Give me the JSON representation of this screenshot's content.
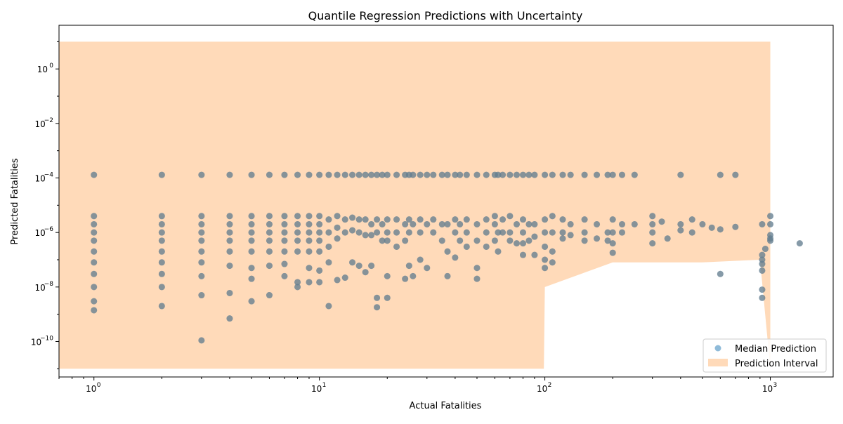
{
  "chart_data": {
    "type": "scatter",
    "title": "Quantile Regression Predictions with Uncertainty",
    "xlabel": "Actual Fatalities",
    "ylabel": "Predicted Fatalities",
    "xscale": "log",
    "yscale": "log",
    "xlim": [
      0.7,
      1900
    ],
    "ylim": [
      5e-12,
      40
    ],
    "x_ticks": [
      {
        "value": 1,
        "base": "10",
        "exp": "0"
      },
      {
        "value": 10,
        "base": "10",
        "exp": "1"
      },
      {
        "value": 100,
        "base": "10",
        "exp": "2"
      },
      {
        "value": 1000,
        "base": "10",
        "exp": "3"
      }
    ],
    "y_ticks": [
      {
        "value": 1e-10,
        "base": "10",
        "exp": "−10"
      },
      {
        "value": 1e-08,
        "base": "10",
        "exp": "−8"
      },
      {
        "value": 1e-06,
        "base": "10",
        "exp": "−6"
      },
      {
        "value": 0.0001,
        "base": "10",
        "exp": "−4"
      },
      {
        "value": 0.01,
        "base": "10",
        "exp": "−2"
      },
      {
        "value": 1,
        "base": "10",
        "exp": "0"
      }
    ],
    "grid": false,
    "legend_position": "lower-right",
    "legend": [
      {
        "label": "Median Prediction",
        "kind": "marker",
        "color": "#1f77b4"
      },
      {
        "label": "Prediction Interval",
        "kind": "band",
        "color": "#ffdab9"
      }
    ],
    "colors": {
      "median": "#1f77b4",
      "interval": "#ffdab9",
      "overlay": "#808080"
    },
    "series": [
      {
        "name": "Prediction Interval",
        "kind": "band",
        "x": [
          1,
          2,
          3,
          4,
          5,
          6,
          7,
          8,
          9,
          10,
          12,
          15,
          20,
          30,
          50,
          99,
          100,
          200,
          300,
          500,
          900,
          1000
        ],
        "lower": [
          1e-11,
          1e-11,
          1e-11,
          1e-11,
          1e-11,
          1e-11,
          1e-11,
          1e-11,
          1e-11,
          1e-11,
          1e-11,
          1e-11,
          1e-11,
          1e-11,
          1e-11,
          1e-11,
          1e-08,
          8e-08,
          8e-08,
          8e-08,
          1e-07,
          1e-11
        ],
        "upper": [
          10,
          10,
          10,
          10,
          10,
          10,
          10,
          10,
          10,
          10,
          10,
          10,
          10,
          10,
          10,
          10,
          10,
          10,
          10,
          10,
          10,
          10
        ]
      },
      {
        "name": "Median Prediction",
        "kind": "points",
        "points": [
          [
            1,
            0.00013
          ],
          [
            1,
            4e-06
          ],
          [
            1,
            2e-06
          ],
          [
            1,
            1e-06
          ],
          [
            1,
            5e-07
          ],
          [
            1,
            2e-07
          ],
          [
            1,
            8e-08
          ],
          [
            1,
            3e-08
          ],
          [
            1,
            1e-08
          ],
          [
            1,
            3e-09
          ],
          [
            1,
            1.4e-09
          ],
          [
            2,
            0.00013
          ],
          [
            2,
            4e-06
          ],
          [
            2,
            2e-06
          ],
          [
            2,
            1e-06
          ],
          [
            2,
            5e-07
          ],
          [
            2,
            2e-07
          ],
          [
            2,
            8e-08
          ],
          [
            2,
            3e-08
          ],
          [
            2,
            1e-08
          ],
          [
            2,
            2e-09
          ],
          [
            3,
            0.00013
          ],
          [
            3,
            4e-06
          ],
          [
            3,
            2e-06
          ],
          [
            3,
            1e-06
          ],
          [
            3,
            5e-07
          ],
          [
            3,
            2e-07
          ],
          [
            3,
            8e-08
          ],
          [
            3,
            2.5e-08
          ],
          [
            3,
            5e-09
          ],
          [
            3,
            1.1e-10
          ],
          [
            4,
            0.00013
          ],
          [
            4,
            4e-06
          ],
          [
            4,
            2e-06
          ],
          [
            4,
            1e-06
          ],
          [
            4,
            5e-07
          ],
          [
            4,
            2e-07
          ],
          [
            4,
            6e-08
          ],
          [
            4,
            6e-09
          ],
          [
            4,
            7e-10
          ],
          [
            5,
            0.00013
          ],
          [
            5,
            4e-06
          ],
          [
            5,
            2e-06
          ],
          [
            5,
            1e-06
          ],
          [
            5,
            5e-07
          ],
          [
            5,
            2e-07
          ],
          [
            5,
            5e-08
          ],
          [
            5,
            2e-08
          ],
          [
            5,
            3e-09
          ],
          [
            6,
            0.00013
          ],
          [
            6,
            4e-06
          ],
          [
            6,
            2e-06
          ],
          [
            6,
            1e-06
          ],
          [
            6,
            5e-07
          ],
          [
            6,
            2e-07
          ],
          [
            6,
            6e-08
          ],
          [
            6,
            5e-09
          ],
          [
            7,
            0.00013
          ],
          [
            7,
            4e-06
          ],
          [
            7,
            2e-06
          ],
          [
            7,
            1e-06
          ],
          [
            7,
            5e-07
          ],
          [
            7,
            2e-07
          ],
          [
            7,
            7e-08
          ],
          [
            7,
            2.5e-08
          ],
          [
            8,
            0.00013
          ],
          [
            8,
            4e-06
          ],
          [
            8,
            2e-06
          ],
          [
            8,
            1e-06
          ],
          [
            8,
            5e-07
          ],
          [
            8,
            2e-07
          ],
          [
            8,
            1.5e-08
          ],
          [
            8,
            1e-08
          ],
          [
            9,
            0.00013
          ],
          [
            9,
            4e-06
          ],
          [
            9,
            2e-06
          ],
          [
            9,
            1e-06
          ],
          [
            9,
            5e-07
          ],
          [
            9,
            2e-07
          ],
          [
            9,
            5e-08
          ],
          [
            9,
            1.5e-08
          ],
          [
            10,
            0.00013
          ],
          [
            10,
            4e-06
          ],
          [
            10,
            2e-06
          ],
          [
            10,
            1e-06
          ],
          [
            10,
            5e-07
          ],
          [
            10,
            2e-07
          ],
          [
            10,
            4e-08
          ],
          [
            10,
            1.5e-08
          ],
          [
            11,
            0.00013
          ],
          [
            11,
            3e-06
          ],
          [
            11,
            1e-06
          ],
          [
            11,
            3e-07
          ],
          [
            11,
            8e-08
          ],
          [
            11,
            2e-09
          ],
          [
            12,
            0.00013
          ],
          [
            12,
            4e-06
          ],
          [
            12,
            1.5e-06
          ],
          [
            12,
            6e-07
          ],
          [
            12,
            1.8e-08
          ],
          [
            13,
            0.00013
          ],
          [
            13,
            3e-06
          ],
          [
            13,
            1e-06
          ],
          [
            13,
            2.2e-08
          ],
          [
            14,
            0.00013
          ],
          [
            14,
            3.5e-06
          ],
          [
            14,
            1.2e-06
          ],
          [
            14,
            8e-08
          ],
          [
            15,
            0.00013
          ],
          [
            15,
            3e-06
          ],
          [
            15,
            1e-06
          ],
          [
            15,
            6e-08
          ],
          [
            16,
            0.00013
          ],
          [
            16,
            3e-06
          ],
          [
            16,
            8e-07
          ],
          [
            16,
            3.5e-08
          ],
          [
            17,
            0.00013
          ],
          [
            17,
            2e-06
          ],
          [
            17,
            8e-07
          ],
          [
            17,
            6e-08
          ],
          [
            18,
            0.00013
          ],
          [
            18,
            3e-06
          ],
          [
            18,
            1e-06
          ],
          [
            18,
            4e-09
          ],
          [
            18,
            1.8e-09
          ],
          [
            19,
            0.00013
          ],
          [
            19,
            2e-06
          ],
          [
            19,
            5e-07
          ],
          [
            20,
            0.00013
          ],
          [
            20,
            3e-06
          ],
          [
            20,
            1e-06
          ],
          [
            20,
            5e-07
          ],
          [
            20,
            2.5e-08
          ],
          [
            20,
            4e-09
          ],
          [
            22,
            0.00013
          ],
          [
            22,
            3e-06
          ],
          [
            22,
            1e-06
          ],
          [
            22,
            3e-07
          ],
          [
            24,
            0.00013
          ],
          [
            24,
            2e-06
          ],
          [
            24,
            5e-07
          ],
          [
            24,
            2e-08
          ],
          [
            25,
            0.00013
          ],
          [
            25,
            3e-06
          ],
          [
            25,
            1e-06
          ],
          [
            25,
            6e-08
          ],
          [
            26,
            0.00013
          ],
          [
            26,
            2e-06
          ],
          [
            26,
            2.5e-08
          ],
          [
            28,
            0.00013
          ],
          [
            28,
            3e-06
          ],
          [
            28,
            1e-06
          ],
          [
            28,
            1e-07
          ],
          [
            30,
            0.00013
          ],
          [
            30,
            2e-06
          ],
          [
            30,
            5e-08
          ],
          [
            32,
            0.00013
          ],
          [
            32,
            3e-06
          ],
          [
            32,
            1e-06
          ],
          [
            35,
            0.00013
          ],
          [
            35,
            2e-06
          ],
          [
            35,
            5e-07
          ],
          [
            37,
            0.00013
          ],
          [
            37,
            2e-06
          ],
          [
            37,
            2e-07
          ],
          [
            37,
            2.5e-08
          ],
          [
            40,
            0.00013
          ],
          [
            40,
            3e-06
          ],
          [
            40,
            1e-06
          ],
          [
            40,
            1.2e-07
          ],
          [
            42,
            0.00013
          ],
          [
            42,
            2e-06
          ],
          [
            42,
            5e-07
          ],
          [
            45,
            0.00013
          ],
          [
            45,
            3e-06
          ],
          [
            45,
            1e-06
          ],
          [
            45,
            3e-07
          ],
          [
            50,
            0.00013
          ],
          [
            50,
            2e-06
          ],
          [
            50,
            5e-07
          ],
          [
            50,
            5e-08
          ],
          [
            50,
            2e-08
          ],
          [
            55,
            0.00013
          ],
          [
            55,
            3e-06
          ],
          [
            55,
            1e-06
          ],
          [
            55,
            3e-07
          ],
          [
            60,
            0.00013
          ],
          [
            60,
            4e-06
          ],
          [
            60,
            2e-06
          ],
          [
            60,
            5e-07
          ],
          [
            62,
            0.00013
          ],
          [
            62,
            1e-06
          ],
          [
            62,
            2e-07
          ],
          [
            65,
            0.00013
          ],
          [
            65,
            3e-06
          ],
          [
            65,
            1e-06
          ],
          [
            70,
            0.00013
          ],
          [
            70,
            4e-06
          ],
          [
            70,
            1e-06
          ],
          [
            70,
            5e-07
          ],
          [
            75,
            0.00013
          ],
          [
            75,
            2e-06
          ],
          [
            75,
            4e-07
          ],
          [
            80,
            0.00013
          ],
          [
            80,
            3e-06
          ],
          [
            80,
            1e-06
          ],
          [
            80,
            1.5e-07
          ],
          [
            80,
            4e-07
          ],
          [
            85,
            0.00013
          ],
          [
            85,
            2e-06
          ],
          [
            85,
            5e-07
          ],
          [
            90,
            0.00013
          ],
          [
            90,
            2e-06
          ],
          [
            90,
            7e-07
          ],
          [
            90,
            1.5e-07
          ],
          [
            100,
            0.00013
          ],
          [
            100,
            3e-06
          ],
          [
            100,
            1e-06
          ],
          [
            100,
            3e-07
          ],
          [
            100,
            1e-07
          ],
          [
            100,
            5e-08
          ],
          [
            108,
            0.00013
          ],
          [
            108,
            4e-06
          ],
          [
            108,
            1e-06
          ],
          [
            108,
            2e-07
          ],
          [
            108,
            8e-08
          ],
          [
            120,
            0.00013
          ],
          [
            120,
            3e-06
          ],
          [
            120,
            1e-06
          ],
          [
            120,
            6e-07
          ],
          [
            130,
            0.00013
          ],
          [
            130,
            2e-06
          ],
          [
            130,
            8e-07
          ],
          [
            150,
            0.00013
          ],
          [
            150,
            3e-06
          ],
          [
            150,
            1e-06
          ],
          [
            150,
            5e-07
          ],
          [
            170,
            0.00013
          ],
          [
            170,
            2e-06
          ],
          [
            170,
            6e-07
          ],
          [
            190,
            0.00013
          ],
          [
            190,
            1e-06
          ],
          [
            190,
            5e-07
          ],
          [
            200,
            0.00013
          ],
          [
            200,
            3e-06
          ],
          [
            200,
            1e-06
          ],
          [
            200,
            4e-07
          ],
          [
            200,
            1.8e-07
          ],
          [
            220,
            0.00013
          ],
          [
            220,
            2e-06
          ],
          [
            220,
            1e-06
          ],
          [
            250,
            0.00013
          ],
          [
            250,
            2e-06
          ],
          [
            300,
            4e-06
          ],
          [
            300,
            2e-06
          ],
          [
            300,
            1e-06
          ],
          [
            300,
            4e-07
          ],
          [
            330,
            2.5e-06
          ],
          [
            350,
            6e-07
          ],
          [
            400,
            0.00013
          ],
          [
            400,
            2e-06
          ],
          [
            400,
            1.2e-06
          ],
          [
            450,
            3e-06
          ],
          [
            450,
            1e-06
          ],
          [
            500,
            2e-06
          ],
          [
            550,
            1.5e-06
          ],
          [
            600,
            0.00013
          ],
          [
            600,
            1.3e-06
          ],
          [
            600,
            3e-08
          ],
          [
            700,
            0.00013
          ],
          [
            700,
            1.6e-06
          ],
          [
            920,
            2e-06
          ],
          [
            920,
            1.5e-07
          ],
          [
            920,
            1e-07
          ],
          [
            920,
            7e-08
          ],
          [
            920,
            4e-08
          ],
          [
            920,
            8e-09
          ],
          [
            920,
            4e-09
          ],
          [
            950,
            2.5e-07
          ],
          [
            1000,
            4e-06
          ],
          [
            1000,
            2e-06
          ],
          [
            1000,
            8e-07
          ],
          [
            1000,
            6e-07
          ],
          [
            1000,
            5e-07
          ],
          [
            1350,
            4e-07
          ]
        ]
      }
    ]
  }
}
